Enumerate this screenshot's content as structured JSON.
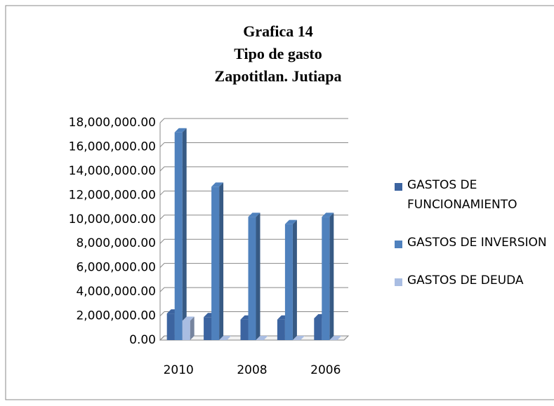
{
  "chart_data": {
    "type": "bar3d",
    "title_lines": [
      "Grafica 14",
      "Tipo de gasto",
      "Zapotitlan. Jutiapa"
    ],
    "categories": [
      "2010",
      null,
      "2008",
      null,
      "2006"
    ],
    "series": [
      {
        "name": "GASTOS DE FUNCIONAMIENTO",
        "color": "#3c64a0",
        "values": [
          2200000,
          1900000,
          1700000,
          1700000,
          1800000
        ]
      },
      {
        "name": "GASTOS DE INVERSION",
        "color": "#4f81bd",
        "values": [
          17200000,
          12700000,
          10200000,
          9600000,
          10200000
        ]
      },
      {
        "name": "GASTOS DE DEUDA",
        "color": "#a9bde2",
        "values": [
          1600000,
          0,
          0,
          0,
          0
        ]
      }
    ],
    "ylim": [
      0,
      18000000
    ],
    "yticks": [
      {
        "value": 0,
        "label": "0.00"
      },
      {
        "value": 2000000,
        "label": "2,000,000.00"
      },
      {
        "value": 4000000,
        "label": "4,000,000.00"
      },
      {
        "value": 6000000,
        "label": "6,000,000.00"
      },
      {
        "value": 8000000,
        "label": "8,000,000.00"
      },
      {
        "value": 10000000,
        "label": "10,000,000.00"
      },
      {
        "value": 12000000,
        "label": "12,000,000.00"
      },
      {
        "value": 14000000,
        "label": "14,000,000.00"
      },
      {
        "value": 16000000,
        "label": "16,000,000.00"
      },
      {
        "value": 18000000,
        "label": "18,000,000.00"
      }
    ],
    "grid": true,
    "legend": "right"
  }
}
